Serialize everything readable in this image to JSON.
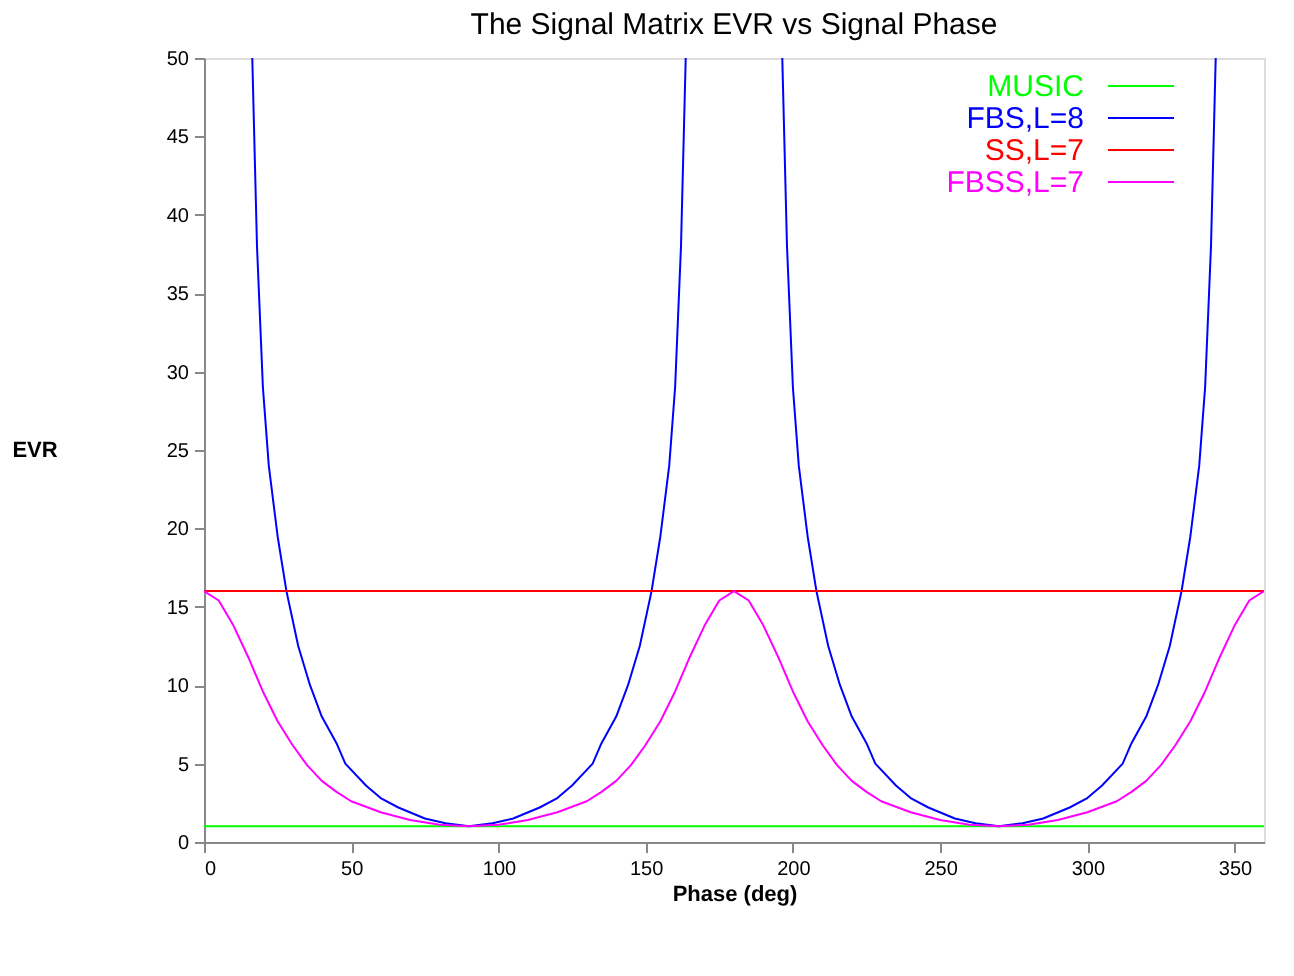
{
  "chart_data": {
    "type": "line",
    "title": "The Signal Matrix EVR vs Signal Phase",
    "xlabel": "Phase (deg)",
    "ylabel": "EVR",
    "xlim": [
      0,
      360
    ],
    "xticks": [
      0,
      50,
      100,
      150,
      200,
      250,
      300,
      350
    ],
    "ylim": [
      0,
      50
    ],
    "yticks": [
      0,
      5,
      10,
      15,
      20,
      25,
      30,
      35,
      40,
      45,
      50
    ],
    "grid": false,
    "legend": "top right",
    "marker": "none",
    "line_style": "solid",
    "series": [
      {
        "name": "MUSIC",
        "color": "#00ff00",
        "x": [
          0,
          360
        ],
        "values": [
          1,
          1
        ]
      },
      {
        "name": "FBS,L=8",
        "color": "#0000ff",
        "x": [
          16.4,
          18,
          20,
          22,
          25,
          28,
          32,
          36,
          40,
          45,
          48,
          55,
          60,
          66,
          75,
          82,
          90,
          98,
          105,
          114,
          120,
          125,
          132,
          135,
          140,
          144,
          148,
          152,
          155,
          158,
          160,
          162,
          163.6,
          180,
          196.4,
          198,
          200,
          202,
          205,
          208,
          212,
          216,
          220,
          225,
          228,
          235,
          240,
          246,
          255,
          262,
          270,
          278,
          285,
          294,
          300,
          305,
          312,
          315,
          320,
          324,
          328,
          332,
          335,
          338,
          340,
          342,
          343.6
        ],
        "values": [
          50,
          38,
          29,
          24,
          19.5,
          16,
          12.5,
          10,
          8,
          6.3,
          5,
          3.6,
          2.8,
          2.2,
          1.5,
          1.2,
          1,
          1.2,
          1.5,
          2.2,
          2.8,
          3.6,
          5,
          6.3,
          8,
          10,
          12.5,
          16,
          19.5,
          24,
          29,
          38,
          50,
          null,
          50,
          38,
          29,
          24,
          19.5,
          16,
          12.5,
          10,
          8,
          6.3,
          5,
          3.6,
          2.8,
          2.2,
          1.5,
          1.2,
          1,
          1.2,
          1.5,
          2.2,
          2.8,
          3.6,
          5,
          6.3,
          8,
          10,
          12.5,
          16,
          19.5,
          24,
          29,
          38,
          50
        ]
      },
      {
        "name": "SS,L=7",
        "color": "#ff0000",
        "x": [
          0,
          360
        ],
        "values": [
          16,
          16
        ]
      },
      {
        "name": "FBSS,L=7",
        "color": "#ff00ff",
        "x": [
          0,
          5,
          10,
          15,
          20,
          25,
          30,
          35,
          40,
          45,
          50,
          60,
          70,
          80,
          90,
          100,
          110,
          120,
          130,
          135,
          140,
          145,
          150,
          155,
          160,
          165,
          170,
          175,
          180,
          185,
          190,
          195,
          200,
          205,
          210,
          215,
          220,
          225,
          230,
          240,
          250,
          260,
          270,
          280,
          290,
          300,
          310,
          315,
          320,
          325,
          330,
          335,
          340,
          345,
          350,
          355,
          360
        ],
        "values": [
          16,
          15.4,
          13.8,
          11.8,
          9.6,
          7.7,
          6.2,
          4.9,
          3.9,
          3.2,
          2.6,
          1.9,
          1.4,
          1.1,
          1,
          1.1,
          1.4,
          1.9,
          2.6,
          3.2,
          3.9,
          4.9,
          6.2,
          7.7,
          9.6,
          11.8,
          13.8,
          15.4,
          16,
          15.4,
          13.8,
          11.8,
          9.6,
          7.7,
          6.2,
          4.9,
          3.9,
          3.2,
          2.6,
          1.9,
          1.4,
          1.1,
          1,
          1.1,
          1.4,
          1.9,
          2.6,
          3.2,
          3.9,
          4.9,
          6.2,
          7.7,
          9.6,
          11.8,
          13.8,
          15.4,
          16
        ]
      }
    ]
  }
}
